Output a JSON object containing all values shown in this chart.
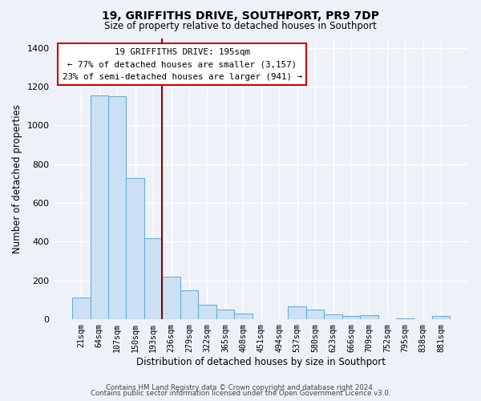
{
  "title_line1": "19, GRIFFITHS DRIVE, SOUTHPORT, PR9 7DP",
  "title_line2": "Size of property relative to detached houses in Southport",
  "xlabel": "Distribution of detached houses by size in Southport",
  "ylabel": "Number of detached properties",
  "bar_labels": [
    "21sqm",
    "64sqm",
    "107sqm",
    "150sqm",
    "193sqm",
    "236sqm",
    "279sqm",
    "322sqm",
    "365sqm",
    "408sqm",
    "451sqm",
    "494sqm",
    "537sqm",
    "580sqm",
    "623sqm",
    "666sqm",
    "709sqm",
    "752sqm",
    "795sqm",
    "838sqm",
    "881sqm"
  ],
  "bar_values": [
    110,
    1155,
    1150,
    730,
    420,
    220,
    150,
    75,
    50,
    30,
    0,
    0,
    65,
    50,
    25,
    15,
    20,
    0,
    5,
    0,
    15
  ],
  "bar_color": "#cce0f5",
  "bar_edge_color": "#6aaed6",
  "property_line_x": 4.5,
  "annotation_line1": "19 GRIFFITHS DRIVE: 195sqm",
  "annotation_line2": "← 77% of detached houses are smaller (3,157)",
  "annotation_line3": "23% of semi-detached houses are larger (941) →",
  "annotation_box_color": "#ffffff",
  "annotation_box_edge": "#cc0000",
  "vline_color": "#880000",
  "ylim": [
    0,
    1450
  ],
  "yticks": [
    0,
    200,
    400,
    600,
    800,
    1000,
    1200,
    1400
  ],
  "footer_line1": "Contains HM Land Registry data © Crown copyright and database right 2024.",
  "footer_line2": "Contains public sector information licensed under the Open Government Licence v3.0.",
  "bg_color": "#eef2f8",
  "plot_bg_color": "#eef2f8",
  "grid_color": "#ffffff"
}
